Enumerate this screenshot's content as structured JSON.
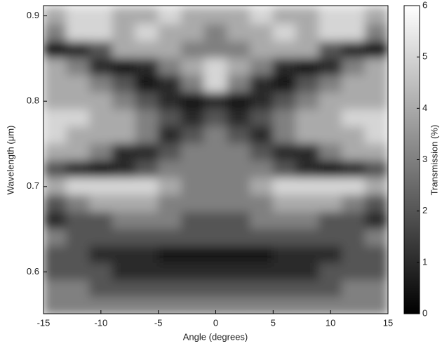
{
  "chart_data": {
    "type": "heatmap",
    "xlabel": "Angle (degrees)",
    "ylabel": "Wavelength (μm)",
    "colorbar_label": "Transmission (%)",
    "colormap": "gray",
    "xlim": [
      -15,
      15
    ],
    "xticks": [
      -15,
      -10,
      -5,
      0,
      5,
      10,
      15
    ],
    "ylim": [
      0.551,
      0.912
    ],
    "yticks": [
      0.6,
      0.7,
      0.8,
      0.9
    ],
    "zlim": [
      0,
      6
    ],
    "zticks": [
      0,
      1,
      2,
      3,
      4,
      5,
      6
    ],
    "x": [
      -14,
      -12,
      -10,
      -8,
      -6,
      -4,
      -2,
      0,
      2,
      4,
      6,
      8,
      10,
      12,
      14
    ],
    "y": [
      0.9,
      0.88,
      0.86,
      0.84,
      0.82,
      0.8,
      0.78,
      0.76,
      0.74,
      0.72,
      0.7,
      0.68,
      0.66,
      0.64,
      0.62,
      0.6,
      0.58,
      0.56
    ],
    "z": [
      [
        4,
        5,
        5,
        4,
        4,
        5,
        4,
        4,
        4,
        5,
        4,
        4,
        5,
        5,
        4
      ],
      [
        3,
        5,
        5,
        4,
        5,
        4,
        4,
        3,
        4,
        4,
        5,
        4,
        5,
        5,
        3
      ],
      [
        0.5,
        1,
        2,
        4,
        4,
        4,
        3,
        3,
        3,
        4,
        4,
        4,
        2,
        1,
        0.5
      ],
      [
        4,
        3,
        1,
        0.5,
        1,
        3,
        4,
        5,
        4,
        3,
        1,
        0.5,
        1,
        3,
        4
      ],
      [
        4,
        4,
        3,
        2,
        0.5,
        1,
        3,
        5,
        3,
        1,
        0.5,
        2,
        3,
        4,
        4
      ],
      [
        4,
        4,
        4,
        3,
        2,
        1,
        0.5,
        1,
        0.5,
        1,
        2,
        3,
        4,
        4,
        4
      ],
      [
        5,
        5,
        4,
        4,
        3,
        2,
        1,
        2,
        1,
        2,
        3,
        4,
        4,
        5,
        5
      ],
      [
        5,
        4,
        4,
        4,
        3,
        1,
        2,
        3,
        2,
        1,
        3,
        4,
        4,
        4,
        5
      ],
      [
        4,
        4,
        3,
        1,
        1,
        2,
        3,
        3,
        3,
        2,
        1,
        1,
        3,
        4,
        4
      ],
      [
        2,
        1,
        0.5,
        1,
        2,
        3,
        3,
        3,
        3,
        3,
        2,
        1,
        0.5,
        1,
        2
      ],
      [
        4,
        5,
        5,
        5,
        5,
        4,
        3,
        3,
        3,
        4,
        5,
        5,
        5,
        5,
        4
      ],
      [
        2,
        3,
        4,
        4,
        4,
        3,
        3,
        3,
        3,
        3,
        4,
        4,
        4,
        3,
        2
      ],
      [
        1,
        2,
        2,
        3,
        3,
        3,
        2,
        2,
        2,
        3,
        3,
        3,
        2,
        2,
        1
      ],
      [
        3,
        2,
        2,
        2,
        2,
        2,
        2,
        2,
        2,
        2,
        2,
        2,
        2,
        2,
        3
      ],
      [
        2,
        2,
        1,
        1,
        1,
        0.5,
        0.5,
        0.5,
        0.5,
        0.5,
        1,
        1,
        1,
        2,
        2
      ],
      [
        2,
        2,
        2,
        1,
        1,
        1,
        1,
        1,
        1,
        1,
        1,
        1,
        2,
        2,
        2
      ],
      [
        3,
        3,
        2,
        2,
        2,
        2,
        2,
        2,
        2,
        2,
        2,
        2,
        2,
        3,
        3
      ],
      [
        3,
        3,
        3,
        3,
        3,
        3,
        3,
        3,
        3,
        3,
        3,
        3,
        3,
        3,
        3
      ]
    ]
  }
}
